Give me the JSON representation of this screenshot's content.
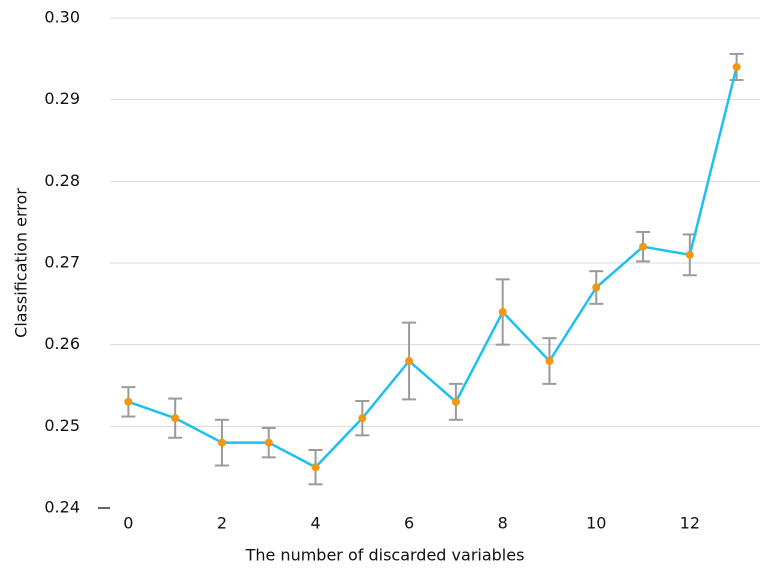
{
  "chart_data": {
    "type": "line",
    "x_label": "The number of discarded variables",
    "y_label": "Classification error",
    "x": [
      0,
      1,
      2,
      3,
      4,
      5,
      6,
      7,
      8,
      9,
      10,
      11,
      12,
      13
    ],
    "series": [
      {
        "color": "#1ec0f2",
        "marker_color": "#f5960f",
        "error_color": "#9a9a9a",
        "values": [
          0.253,
          0.251,
          0.248,
          0.248,
          0.245,
          0.251,
          0.258,
          0.253,
          0.264,
          0.258,
          0.267,
          0.272,
          0.271,
          0.294
        ],
        "errors": [
          0.0018,
          0.0024,
          0.0028,
          0.0018,
          0.0021,
          0.0021,
          0.0047,
          0.0022,
          0.004,
          0.0028,
          0.002,
          0.0018,
          0.0025,
          0.0016
        ]
      }
    ],
    "xlim": [
      -0.5,
      13.5
    ],
    "xticks": [
      0,
      2,
      4,
      6,
      8,
      10,
      12
    ],
    "ylim": [
      0.24,
      0.3
    ],
    "yticks": [
      0.24,
      0.25,
      0.26,
      0.27,
      0.28,
      0.29,
      {
        "value": 0.3,
        "label": "0.30"
      }
    ],
    "grid": true
  }
}
